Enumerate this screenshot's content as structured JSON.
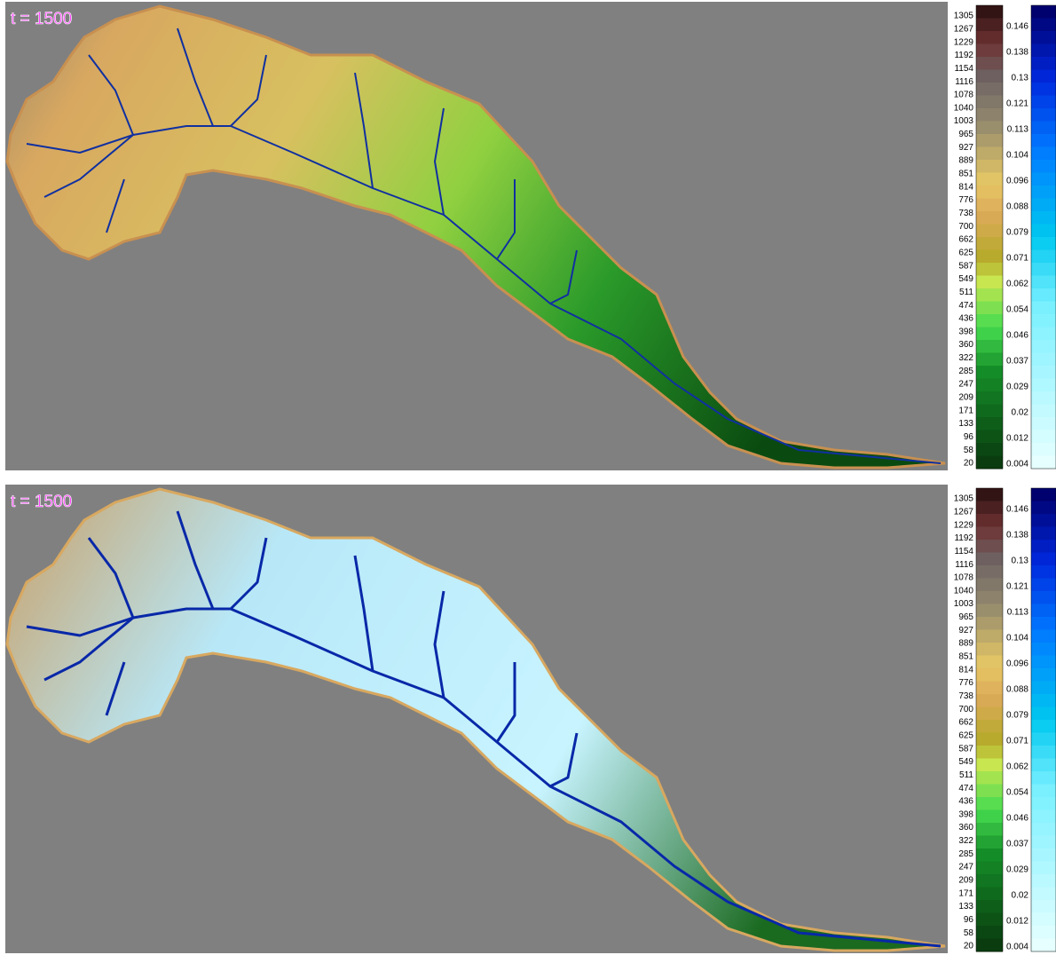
{
  "panels": [
    {
      "label": "t = 1500",
      "elevation_legend": [
        1305,
        1267,
        1229,
        1192,
        1154,
        1116,
        1078,
        1040,
        1003,
        965,
        927,
        889,
        851,
        814,
        776,
        738,
        700,
        662,
        625,
        587,
        549,
        511,
        474,
        436,
        398,
        360,
        322,
        285,
        247,
        209,
        171,
        133,
        96,
        58,
        20
      ],
      "depth_legend": [
        0.146,
        0.138,
        0.13,
        0.121,
        0.113,
        0.104,
        0.096,
        0.088,
        0.079,
        0.071,
        0.062,
        0.054,
        0.046,
        0.037,
        0.029,
        0.02,
        0.012,
        0.004
      ]
    },
    {
      "label": "t = 1500",
      "elevation_legend": [
        1305,
        1267,
        1229,
        1192,
        1154,
        1116,
        1078,
        1040,
        1003,
        965,
        927,
        889,
        851,
        814,
        776,
        738,
        700,
        662,
        625,
        587,
        549,
        511,
        474,
        436,
        398,
        360,
        322,
        285,
        247,
        209,
        171,
        133,
        96,
        58,
        20
      ],
      "depth_legend": [
        0.146,
        0.138,
        0.13,
        0.121,
        0.113,
        0.104,
        0.096,
        0.088,
        0.079,
        0.071,
        0.062,
        0.054,
        0.046,
        0.037,
        0.029,
        0.02,
        0.012,
        0.004
      ]
    }
  ]
}
